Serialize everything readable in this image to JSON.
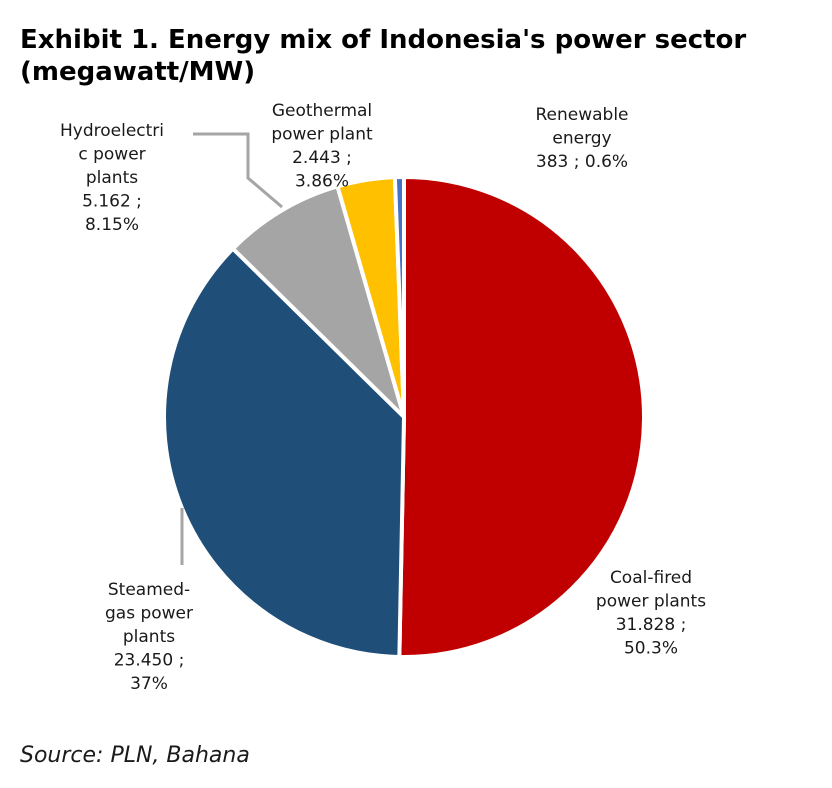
{
  "title_lines": [
    "Exhibit 1. Energy mix of Indonesia's power sector",
    "(megawatt/MW)"
  ],
  "source": "Source: PLN, Bahana",
  "chart_data": {
    "type": "pie",
    "title": "Exhibit 1. Energy mix of Indonesia's power sector (megawatt/MW)",
    "slices": [
      {
        "label": "Coal-fired power plants",
        "value": 31828,
        "percent": 50.3,
        "color": "#C00000",
        "label_lines": [
          "Coal-fired",
          "power plants",
          "31.828 ;",
          "50.3%"
        ]
      },
      {
        "label": "Steamed-gas power plants",
        "value": 23450,
        "percent": 37,
        "color": "#1F4E79",
        "label_lines": [
          "Steamed-",
          "gas power",
          "plants",
          "23.450 ;",
          "37%"
        ]
      },
      {
        "label": "Hydroelectric power plants",
        "value": 5162,
        "percent": 8.15,
        "color": "#A5A5A5",
        "label_lines": [
          "Hydroelectri",
          "c power",
          "plants",
          "5.162 ;",
          "8.15%"
        ]
      },
      {
        "label": "Geothermal power plant",
        "value": 2443,
        "percent": 3.86,
        "color": "#FFC000",
        "label_lines": [
          "Geothermal",
          "power plant",
          "2.443 ;",
          "3.86%"
        ]
      },
      {
        "label": "Renewable energy",
        "value": 383,
        "percent": 0.6,
        "color": "#4472C4",
        "label_lines": [
          "Renewable",
          "energy",
          "383 ; 0.6%"
        ]
      }
    ]
  }
}
